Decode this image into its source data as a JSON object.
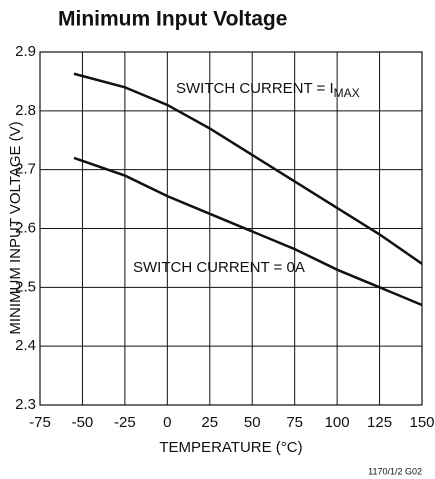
{
  "chart_data": {
    "type": "line",
    "title": "Minimum Input Voltage",
    "xlabel": "TEMPERATURE (°C)",
    "ylabel": "MINIMUM INPUT VOLTAGE (V)",
    "footnote": "1170/1/2 G02",
    "x": [
      -55,
      -25,
      0,
      25,
      50,
      75,
      100,
      125,
      150
    ],
    "series": [
      {
        "name": "SWITCH CURRENT = I",
        "name_sub": "MAX",
        "color": "#111111",
        "values": [
          2.863,
          2.84,
          2.81,
          2.77,
          2.725,
          2.68,
          2.635,
          2.59,
          2.54
        ]
      },
      {
        "name": "SWITCH CURRENT = 0A",
        "color": "#111111",
        "values": [
          2.72,
          2.69,
          2.655,
          2.625,
          2.595,
          2.565,
          2.53,
          2.5,
          2.47
        ]
      }
    ],
    "xlim": [
      -75,
      150
    ],
    "xticks": [
      -75,
      -50,
      -25,
      0,
      25,
      50,
      75,
      100,
      125,
      150
    ],
    "ylim": [
      2.3,
      2.9
    ],
    "yticks": [
      2.3,
      2.4,
      2.5,
      2.6,
      2.7,
      2.8,
      2.9
    ],
    "grid": true
  }
}
